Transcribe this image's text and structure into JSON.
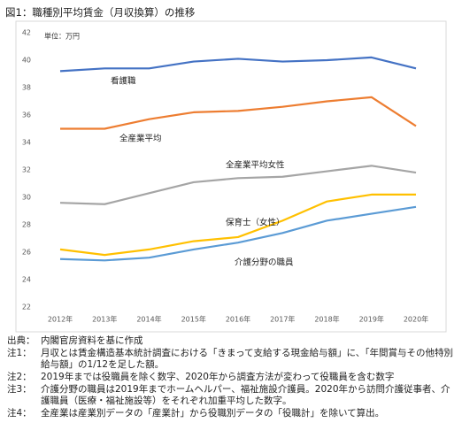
{
  "title": "図1：職種別平均賃金（月収換算）の推移",
  "chart_data": {
    "type": "line",
    "unit_label": "単位：万円",
    "categories": [
      "2012年",
      "2013年",
      "2014年",
      "2015年",
      "2016年",
      "2017年",
      "2018年",
      "2019年",
      "2020年"
    ],
    "series": [
      {
        "name": "看護職",
        "color": "#4472c4",
        "values": [
          39.2,
          39.4,
          39.4,
          39.9,
          40.1,
          39.9,
          40.0,
          40.2,
          39.4
        ]
      },
      {
        "name": "全産業平均",
        "color": "#ed7d31",
        "values": [
          35.0,
          35.0,
          35.7,
          36.2,
          36.3,
          36.6,
          37.0,
          37.3,
          35.2
        ]
      },
      {
        "name": "全産業平均女性",
        "color": "#a5a5a5",
        "values": [
          29.6,
          29.5,
          30.3,
          31.1,
          31.4,
          31.5,
          31.9,
          32.3,
          31.8
        ]
      },
      {
        "name": "保育士（女性）",
        "color": "#ffc000",
        "values": [
          26.2,
          25.8,
          26.2,
          26.8,
          27.1,
          28.3,
          29.7,
          30.2,
          30.2
        ]
      },
      {
        "name": "介護分野の職員",
        "color": "#5b9bd5",
        "values": [
          25.5,
          25.4,
          25.6,
          26.2,
          26.7,
          27.4,
          28.3,
          28.8,
          29.3
        ]
      }
    ],
    "ylim": [
      22,
      42
    ],
    "yticks": [
      22,
      24,
      26,
      28,
      30,
      32,
      34,
      36,
      38,
      40,
      42
    ],
    "grid": false
  },
  "notes": [
    {
      "label": "出典：",
      "text": "内閣官房資料を基に作成"
    },
    {
      "label": "注1：",
      "text": "月収とは賃金構造基本統計調査における「きまって支給する現金給与額」に、「年間賞与その他特別給与額」の1/12を足した額。"
    },
    {
      "label": "注2：",
      "text": "2019年までは役職員を除く数字、2020年から調査方法が変わって役職員を含む数字"
    },
    {
      "label": "注3：",
      "text": "介護分野の職員は2019年までホームヘルパー、福祉施設介護員。2020年から訪問介護従事者、介護職員（医療・福祉施設等）をそれぞれ加重平均した数字。"
    },
    {
      "label": "注4：",
      "text": "全産業は産業別データの「産業計」から役職別データの「役職計」を除いて算出。"
    }
  ]
}
